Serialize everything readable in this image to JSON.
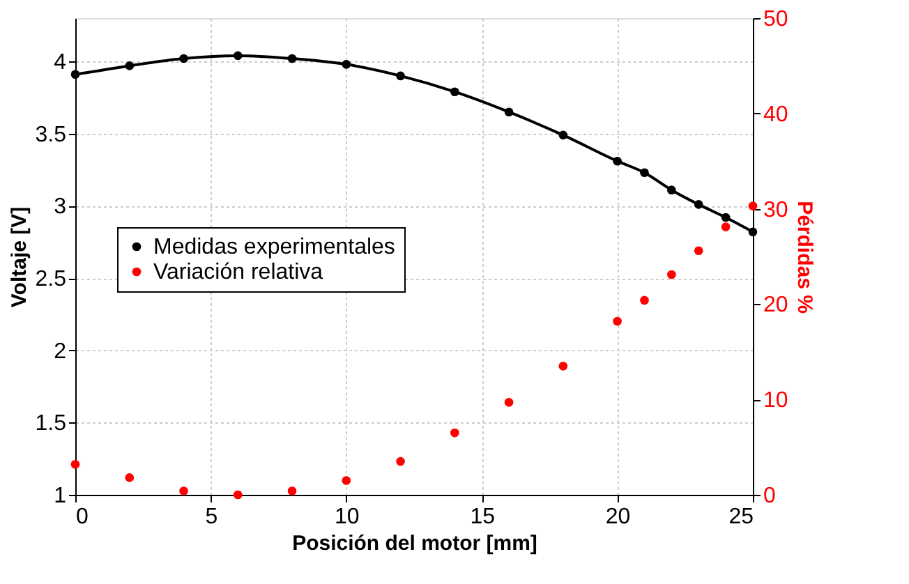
{
  "chart_data": {
    "type": "scatter",
    "xlabel": "Posición del motor [mm]",
    "ylabel": "Voltaje [V]",
    "y2label": "Pérdidas %",
    "series": [
      {
        "type": "line",
        "color": "#000000",
        "marker": "none",
        "x": [
          0,
          2,
          4,
          6,
          8,
          10,
          12,
          14,
          16,
          18,
          20,
          21,
          22,
          23,
          24,
          25
        ],
        "values": [
          3.91,
          3.97,
          4.02,
          4.04,
          4.02,
          3.98,
          3.9,
          3.79,
          3.65,
          3.49,
          3.31,
          3.23,
          3.11,
          3.01,
          2.92,
          2.82
        ]
      },
      {
        "name": "Medidas experimentales",
        "color": "#000000",
        "marker": "circle",
        "x": [
          0,
          2,
          4,
          6,
          8,
          10,
          12,
          14,
          16,
          18,
          20,
          21,
          22,
          23,
          24,
          25
        ],
        "values": [
          3.91,
          3.97,
          4.02,
          4.04,
          4.02,
          3.98,
          3.9,
          3.79,
          3.65,
          3.49,
          3.31,
          3.23,
          3.11,
          3.01,
          2.92,
          2.82
        ]
      },
      {
        "name": "Variación relativa",
        "color": "#ff0000",
        "marker": "circle",
        "axis": "y2",
        "x": [
          0,
          2,
          4,
          6,
          8,
          10,
          12,
          14,
          16,
          18,
          20,
          21,
          22,
          23,
          24,
          25
        ],
        "values": [
          3.2,
          1.8,
          0.4,
          0,
          0.4,
          1.5,
          3.5,
          6.5,
          9.7,
          13.5,
          18.2,
          20.4,
          23.1,
          25.6,
          28.1,
          30.3
        ]
      }
    ],
    "xlim": [
      0,
      25
    ],
    "xticks": [
      0,
      5,
      10,
      15,
      20,
      25
    ],
    "ylim": [
      1,
      4.3
    ],
    "yticks": [
      1,
      1.5,
      2,
      2.5,
      3,
      3.5,
      4
    ],
    "y2lim": [
      0,
      50
    ],
    "y2ticks": [
      0,
      10,
      20,
      30,
      40,
      50
    ],
    "grid": true,
    "legend": "left"
  }
}
